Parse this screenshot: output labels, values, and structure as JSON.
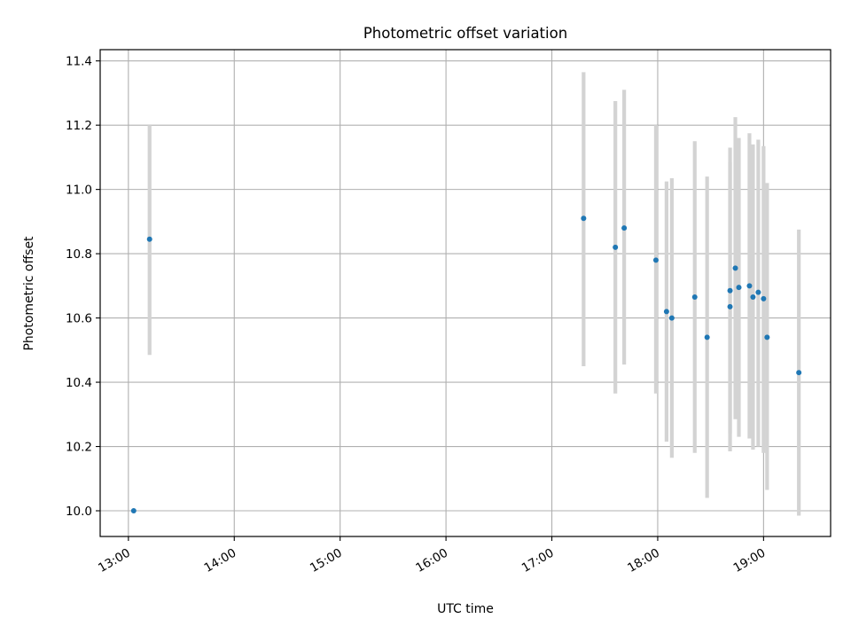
{
  "chart_data": {
    "type": "scatter",
    "title": "Photometric offset variation",
    "xlabel": "UTC time",
    "ylabel": "Photometric offset",
    "xlim": [
      "12:44",
      "19:38"
    ],
    "ylim": [
      9.92,
      11.435
    ],
    "x_ticks": [
      "13:00",
      "14:00",
      "15:00",
      "16:00",
      "17:00",
      "18:00",
      "19:00"
    ],
    "y_ticks": [
      "10.0",
      "10.2",
      "10.4",
      "10.6",
      "10.8",
      "11.0",
      "11.2",
      "11.4"
    ],
    "grid": true,
    "point_color": "#1f77b4",
    "errorbar_color": "#d3d3d3",
    "points": [
      {
        "x": "13:03",
        "y": 10.0,
        "low": null,
        "high": null
      },
      {
        "x": "13:12",
        "y": 10.845,
        "low": 10.485,
        "high": 11.2
      },
      {
        "x": "17:18",
        "y": 10.91,
        "low": 10.45,
        "high": 11.365
      },
      {
        "x": "17:36",
        "y": 10.82,
        "low": 10.365,
        "high": 11.275
      },
      {
        "x": "17:41",
        "y": 10.88,
        "low": 10.455,
        "high": 11.31
      },
      {
        "x": "17:59",
        "y": 10.78,
        "low": 10.365,
        "high": 11.2
      },
      {
        "x": "18:05",
        "y": 10.62,
        "low": 10.215,
        "high": 11.025
      },
      {
        "x": "18:08",
        "y": 10.6,
        "low": 10.165,
        "high": 11.035
      },
      {
        "x": "18:21",
        "y": 10.665,
        "low": 10.18,
        "high": 11.15
      },
      {
        "x": "18:28",
        "y": 10.54,
        "low": 10.04,
        "high": 11.04
      },
      {
        "x": "18:41",
        "y": 10.685,
        "low": 10.24,
        "high": 11.13
      },
      {
        "x": "18:41",
        "y": 10.635,
        "low": 10.185,
        "high": 11.085
      },
      {
        "x": "18:44",
        "y": 10.755,
        "low": 10.285,
        "high": 11.225
      },
      {
        "x": "18:46",
        "y": 10.695,
        "low": 10.23,
        "high": 11.16
      },
      {
        "x": "18:52",
        "y": 10.7,
        "low": 10.225,
        "high": 11.175
      },
      {
        "x": "18:54",
        "y": 10.665,
        "low": 10.19,
        "high": 11.14
      },
      {
        "x": "18:57",
        "y": 10.68,
        "low": 10.2,
        "high": 11.155
      },
      {
        "x": "19:00",
        "y": 10.66,
        "low": 10.18,
        "high": 11.135
      },
      {
        "x": "19:02",
        "y": 10.54,
        "low": 10.065,
        "high": 11.02
      },
      {
        "x": "19:20",
        "y": 10.43,
        "low": 9.985,
        "high": 10.875
      }
    ]
  }
}
